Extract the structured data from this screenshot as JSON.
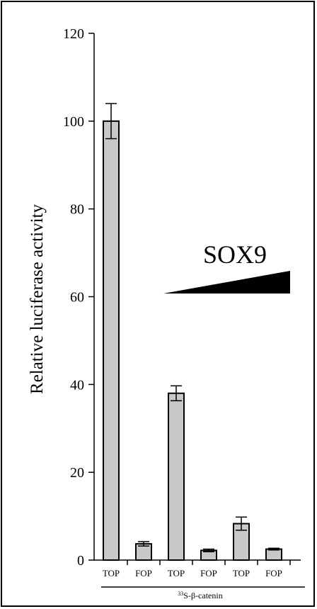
{
  "chart_data": {
    "type": "bar",
    "categories": [
      "TOP",
      "FOP",
      "TOP",
      "FOP",
      "TOP",
      "FOP"
    ],
    "values": [
      100,
      3.7,
      38,
      2.2,
      8.3,
      2.5
    ],
    "errors": [
      4,
      0.5,
      1.7,
      0.3,
      1.5,
      0.2
    ],
    "ylabel": "Relative luciferase activity",
    "ylim": [
      0,
      120
    ],
    "yticks": [
      0,
      20,
      40,
      60,
      80,
      100,
      120
    ],
    "ytick_labels": [
      "0",
      "20",
      "40",
      "60",
      "80",
      "100",
      "120"
    ],
    "bar_color": "#c8c8c8",
    "grid": false,
    "annotations": {
      "gradient_label": "SOX9",
      "group_label_super": "33",
      "group_label_main": "S-β-catenin"
    }
  }
}
